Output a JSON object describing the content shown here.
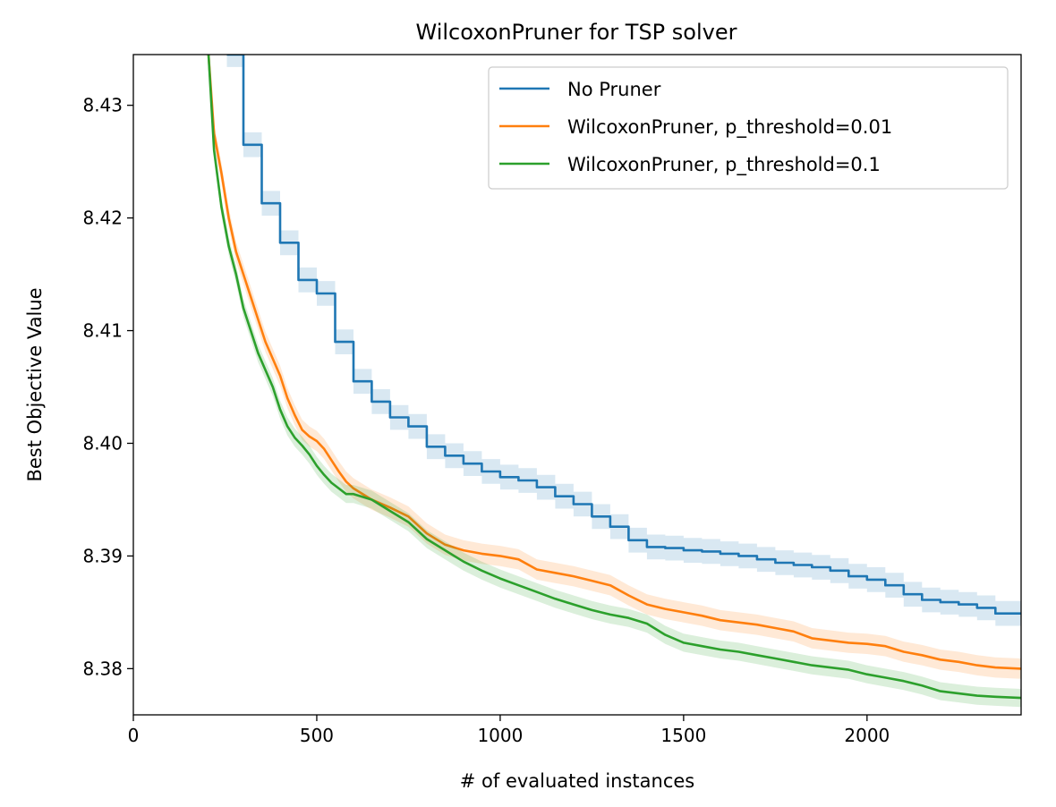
{
  "chart_data": {
    "type": "line",
    "title": "WilcoxonPruner for TSP solver",
    "xlabel": "# of evaluated instances",
    "ylabel": "Best Objective Value",
    "xlim": [
      0,
      2420
    ],
    "ylim": [
      8.3759,
      8.4345
    ],
    "xticks": [
      0,
      500,
      1000,
      1500,
      2000
    ],
    "xtick_labels": [
      "0",
      "500",
      "1000",
      "1500",
      "2000"
    ],
    "yticks": [
      8.38,
      8.39,
      8.4,
      8.41,
      8.42,
      8.43
    ],
    "ytick_labels": [
      "8.38",
      "8.39",
      "8.40",
      "8.41",
      "8.42",
      "8.43"
    ],
    "grid": false,
    "legend": {
      "placement": "top-right"
    },
    "series": [
      {
        "name": "No Pruner",
        "color": "#1f77b4",
        "band_color": "#1f77b4",
        "step": true,
        "x": [
          255,
          300,
          350,
          400,
          450,
          500,
          550,
          600,
          650,
          700,
          750,
          800,
          850,
          900,
          950,
          1000,
          1050,
          1100,
          1150,
          1200,
          1250,
          1300,
          1350,
          1400,
          1450,
          1500,
          1550,
          1600,
          1650,
          1700,
          1750,
          1800,
          1850,
          1900,
          1950,
          2000,
          2050,
          2100,
          2150,
          2200,
          2250,
          2300,
          2350,
          2420
        ],
        "y": [
          8.4345,
          8.4265,
          8.4213,
          8.4178,
          8.4145,
          8.4133,
          8.409,
          8.4055,
          8.4037,
          8.4023,
          8.4015,
          8.3997,
          8.3989,
          8.3982,
          8.3975,
          8.397,
          8.3967,
          8.3961,
          8.3953,
          8.3946,
          8.3935,
          8.3926,
          8.3914,
          8.3908,
          8.3907,
          8.3905,
          8.3904,
          8.3902,
          8.39,
          8.3897,
          8.3894,
          8.3892,
          8.389,
          8.3887,
          8.3882,
          8.3879,
          8.3874,
          8.3866,
          8.3861,
          8.3859,
          8.3857,
          8.3854,
          8.3849,
          8.3849
        ],
        "band": 0.0011
      },
      {
        "name": "WilcoxonPruner, p_threshold=0.01",
        "color": "#ff7f0e",
        "band_color": "#ff7f0e",
        "step": false,
        "x": [
          205,
          220,
          240,
          260,
          280,
          300,
          320,
          340,
          360,
          380,
          400,
          420,
          440,
          460,
          480,
          500,
          520,
          540,
          560,
          580,
          600,
          650,
          700,
          750,
          800,
          850,
          900,
          950,
          1000,
          1050,
          1100,
          1150,
          1200,
          1250,
          1300,
          1350,
          1400,
          1450,
          1500,
          1550,
          1600,
          1650,
          1700,
          1750,
          1800,
          1850,
          1900,
          1950,
          2000,
          2050,
          2100,
          2150,
          2200,
          2250,
          2300,
          2350,
          2420
        ],
        "y": [
          8.4345,
          8.4275,
          8.424,
          8.42,
          8.417,
          8.415,
          8.413,
          8.411,
          8.409,
          8.4075,
          8.406,
          8.404,
          8.4025,
          8.4012,
          8.4006,
          8.4002,
          8.3995,
          8.3985,
          8.3975,
          8.3966,
          8.396,
          8.395,
          8.3943,
          8.3935,
          8.392,
          8.391,
          8.3905,
          8.3902,
          8.39,
          8.3897,
          8.3888,
          8.3885,
          8.3882,
          8.3878,
          8.3874,
          8.3865,
          8.3857,
          8.3853,
          8.385,
          8.3847,
          8.3843,
          8.3841,
          8.3839,
          8.3836,
          8.3833,
          8.3827,
          8.3825,
          8.3823,
          8.3822,
          8.382,
          8.3815,
          8.3812,
          8.3808,
          8.3806,
          8.3803,
          8.3801,
          8.38
        ],
        "band": 0.0009
      },
      {
        "name": "WilcoxonPruner, p_threshold=0.1",
        "color": "#2ca02c",
        "band_color": "#2ca02c",
        "step": false,
        "x": [
          205,
          220,
          240,
          260,
          280,
          300,
          320,
          340,
          360,
          380,
          400,
          420,
          440,
          460,
          480,
          500,
          520,
          540,
          560,
          580,
          600,
          650,
          700,
          750,
          800,
          850,
          900,
          950,
          1000,
          1050,
          1100,
          1150,
          1200,
          1250,
          1300,
          1350,
          1400,
          1450,
          1500,
          1550,
          1600,
          1650,
          1700,
          1750,
          1800,
          1850,
          1900,
          1950,
          2000,
          2050,
          2100,
          2150,
          2200,
          2250,
          2300,
          2350,
          2420
        ],
        "y": [
          8.4345,
          8.426,
          8.421,
          8.4175,
          8.415,
          8.412,
          8.41,
          8.408,
          8.4065,
          8.405,
          8.403,
          8.4015,
          8.4005,
          8.3998,
          8.399,
          8.398,
          8.3972,
          8.3965,
          8.396,
          8.3955,
          8.3955,
          8.395,
          8.394,
          8.393,
          8.3915,
          8.3905,
          8.3895,
          8.3887,
          8.388,
          8.3874,
          8.3868,
          8.3862,
          8.3857,
          8.3852,
          8.3848,
          8.3845,
          8.384,
          8.383,
          8.3823,
          8.382,
          8.3817,
          8.3815,
          8.3812,
          8.3809,
          8.3806,
          8.3803,
          8.3801,
          8.3799,
          8.3795,
          8.3792,
          8.3789,
          8.3785,
          8.378,
          8.3778,
          8.3776,
          8.3775,
          8.3774
        ],
        "band": 0.0008
      }
    ]
  }
}
